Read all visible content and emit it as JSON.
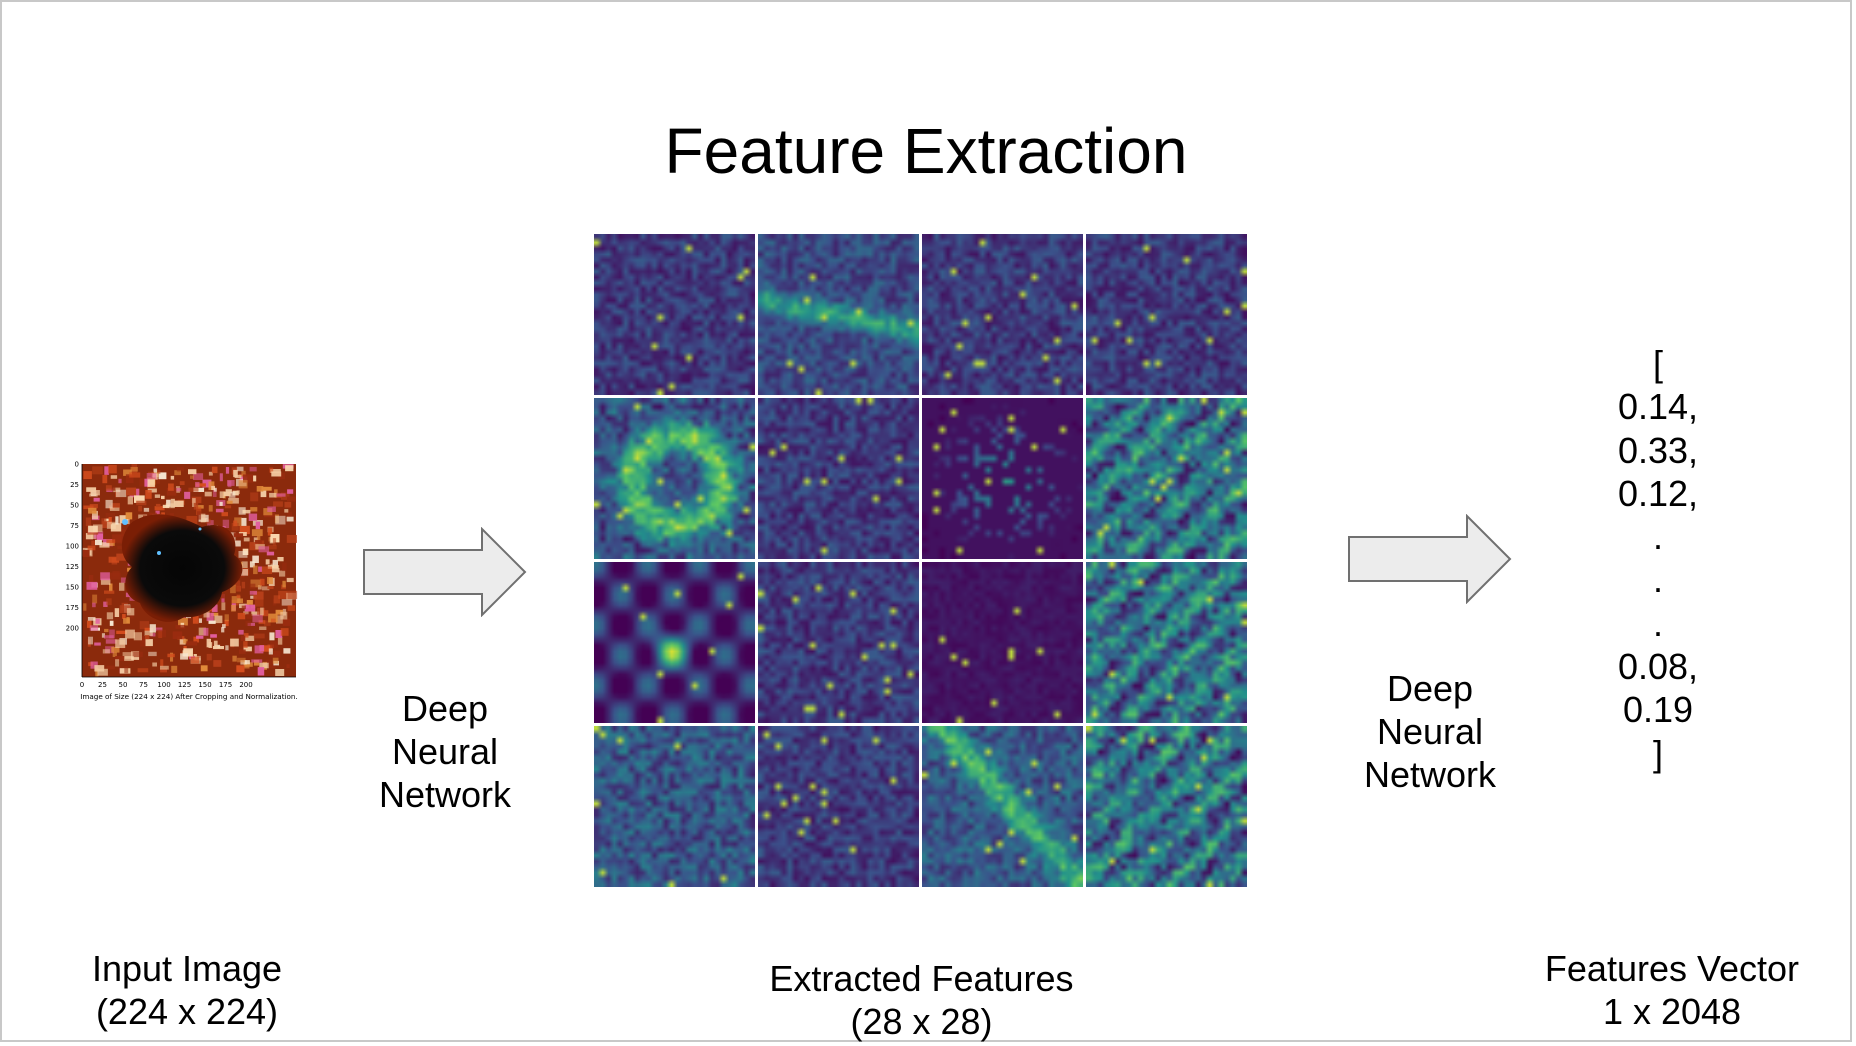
{
  "title": "Feature Extraction",
  "input": {
    "caption_line1": "Input Image",
    "caption_line2": "(224 x 224)",
    "plot_caption": "Image of Size (224 x 224) After Cropping and Normalization.",
    "y_ticks": [
      "0",
      "25",
      "50",
      "75",
      "100",
      "125",
      "150",
      "175",
      "200"
    ],
    "x_ticks": [
      "0",
      "25",
      "50",
      "75",
      "100",
      "125",
      "150",
      "175",
      "200"
    ]
  },
  "arrow1": {
    "line1": "Deep",
    "line2": "Neural",
    "line3": "Network"
  },
  "features": {
    "caption_line1": "Extracted Features",
    "caption_line2": "(28 x 28)",
    "palette": [
      "#440154",
      "#3b528b",
      "#21918c",
      "#5ec962",
      "#fde725"
    ],
    "tiles": [
      {
        "style": "sparse",
        "blob": null
      },
      {
        "style": "streak",
        "blob": null
      },
      {
        "style": "sparse",
        "blob": null
      },
      {
        "style": "sparse",
        "blob": null
      },
      {
        "style": "ring",
        "blob": null
      },
      {
        "style": "sparse",
        "blob": null
      },
      {
        "style": "filament",
        "blob": null
      },
      {
        "style": "texture",
        "blob": null
      },
      {
        "style": "blobby",
        "blob": "center"
      },
      {
        "style": "sparse",
        "blob": null
      },
      {
        "style": "dark",
        "blob": null
      },
      {
        "style": "texture",
        "blob": null
      },
      {
        "style": "noisy",
        "blob": null
      },
      {
        "style": "sparse",
        "blob": null
      },
      {
        "style": "diagonal",
        "blob": null
      },
      {
        "style": "texture",
        "blob": null
      }
    ]
  },
  "arrow2": {
    "line1": "Deep",
    "line2": "Neural",
    "line3": "Network"
  },
  "vector": {
    "lines": [
      "[",
      "0.14,",
      "0.33,",
      "0.12,",
      ".",
      ".",
      ".",
      "0.08,",
      "0.19",
      "]"
    ],
    "caption_line1": "Features Vector",
    "caption_line2": "1 x 2048"
  }
}
